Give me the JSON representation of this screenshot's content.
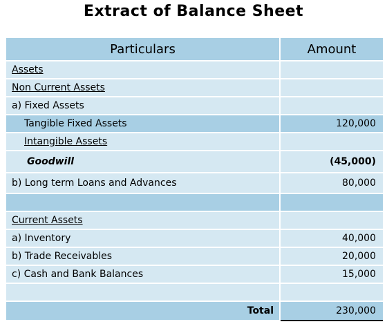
{
  "title": "Extract of Balance Sheet",
  "header": {
    "particulars": "Particulars",
    "amount": "Amount"
  },
  "rows": [
    {
      "label": "Assets",
      "amount": ""
    },
    {
      "label": "Non Current Assets",
      "amount": ""
    },
    {
      "label": "a) Fixed Assets",
      "amount": ""
    },
    {
      "label": "Tangible Fixed Assets",
      "amount": "120,000"
    },
    {
      "label": "Intangible Assets",
      "amount": ""
    },
    {
      "label": "Goodwill",
      "amount": "(45,000)"
    },
    {
      "label": "b) Long term Loans and Advances",
      "amount": "80,000"
    },
    {
      "label": "",
      "amount": ""
    },
    {
      "label": "Current Assets",
      "amount": ""
    },
    {
      "label": "a) Inventory",
      "amount": "40,000"
    },
    {
      "label": "b) Trade Receivables",
      "amount": "20,000"
    },
    {
      "label": "c) Cash and Bank Balances",
      "amount": "15,000"
    },
    {
      "label": "",
      "amount": ""
    }
  ],
  "total": {
    "label": "Total",
    "amount": "230,000"
  }
}
